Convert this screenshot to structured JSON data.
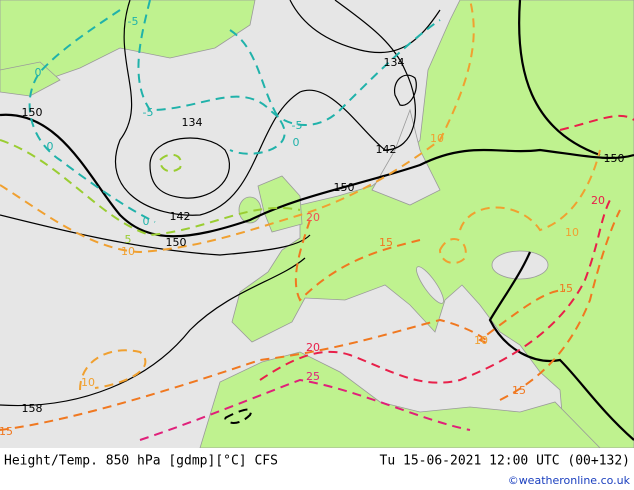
{
  "map": {
    "contour_labels": [
      {
        "text": "150",
        "color": "#000000"
      },
      {
        "text": "134",
        "color": "#000000"
      },
      {
        "text": "134",
        "color": "#000000"
      },
      {
        "text": "142",
        "color": "#000000"
      },
      {
        "text": "142",
        "color": "#000000"
      },
      {
        "text": "150",
        "color": "#000000"
      },
      {
        "text": "150",
        "color": "#000000"
      },
      {
        "text": "150",
        "color": "#000000"
      },
      {
        "text": "158",
        "color": "#000000"
      },
      {
        "text": "-5",
        "color": "#20b2aa"
      },
      {
        "text": "-5",
        "color": "#20b2aa"
      },
      {
        "text": "-5",
        "color": "#20b2aa"
      },
      {
        "text": "0",
        "color": "#20b2aa"
      },
      {
        "text": "0",
        "color": "#20b2aa"
      },
      {
        "text": "0",
        "color": "#20b2aa"
      },
      {
        "text": "0",
        "color": "#20b2aa"
      },
      {
        "text": "5",
        "color": "#9acd32"
      },
      {
        "text": "10",
        "color": "#f0a030"
      },
      {
        "text": "10",
        "color": "#f0a030"
      },
      {
        "text": "10",
        "color": "#f0a030"
      },
      {
        "text": "10",
        "color": "#f0a030"
      },
      {
        "text": "10",
        "color": "#f0a030"
      },
      {
        "text": "15",
        "color": "#f07820"
      },
      {
        "text": "15",
        "color": "#f07820"
      },
      {
        "text": "15",
        "color": "#f07820"
      },
      {
        "text": "15",
        "color": "#f07820"
      },
      {
        "text": "20",
        "color": "#f05050"
      },
      {
        "text": "20",
        "color": "#e8204a"
      },
      {
        "text": "20",
        "color": "#e8204a"
      },
      {
        "text": "25",
        "color": "#e0207a"
      }
    ],
    "footer": {
      "left": "Height/Temp. 850 hPa [gdmp][°C] CFS",
      "right": "Tu 15-06-2021 12:00 UTC (00+132)",
      "credit": "©weatheronline.co.uk"
    }
  }
}
